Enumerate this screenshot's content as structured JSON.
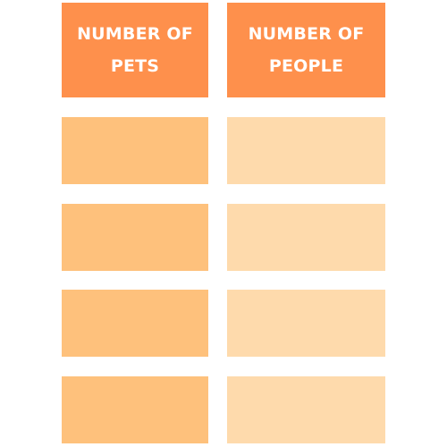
{
  "headers": {
    "pets": "NUMBER OF PETS",
    "people": "NUMBER OF PEOPLE"
  },
  "rows": [
    {
      "pets": "",
      "people": ""
    },
    {
      "pets": "",
      "people": ""
    },
    {
      "pets": "",
      "people": ""
    },
    {
      "pets": "",
      "people": ""
    }
  ],
  "colors": {
    "header": "#fe904c",
    "pets_cell": "#fec17c",
    "people_cell": "#fedaac",
    "header_text": "#ffffff"
  }
}
